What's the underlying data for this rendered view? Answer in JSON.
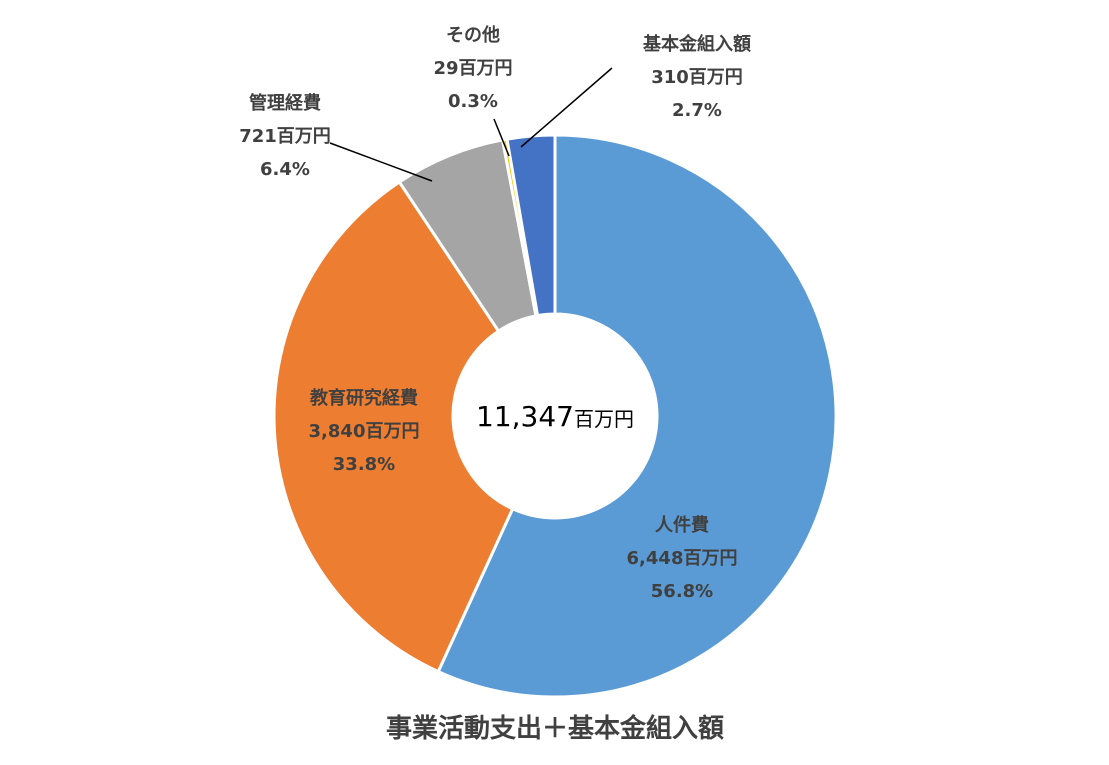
{
  "chart_data": {
    "type": "pie",
    "variant": "doughnut",
    "title": "事業活動支出＋基本金組入額",
    "center": {
      "value": "11,347",
      "unit": "百万円"
    },
    "series": [
      {
        "name": "事業活動支出＋基本金組入額",
        "slices": [
          {
            "label": "人件費",
            "value": 6448,
            "value_text": "6,448百万円",
            "percent_text": "56.8%",
            "color": "#5B9BD5"
          },
          {
            "label": "教育研究経費",
            "value": 3840,
            "value_text": "3,840百万円",
            "percent_text": "33.8%",
            "color": "#ED7D31"
          },
          {
            "label": "管理経費",
            "value": 721,
            "value_text": "721百万円",
            "percent_text": "6.4%",
            "color": "#A5A5A5"
          },
          {
            "label": "その他",
            "value": 29,
            "value_text": "29百万円",
            "percent_text": "0.3%",
            "color": "#FFC000"
          },
          {
            "label": "基本金組入額",
            "value": 310,
            "value_text": "310百万円",
            "percent_text": "2.7%",
            "color": "#4472C4"
          }
        ]
      }
    ],
    "legend": "none"
  }
}
